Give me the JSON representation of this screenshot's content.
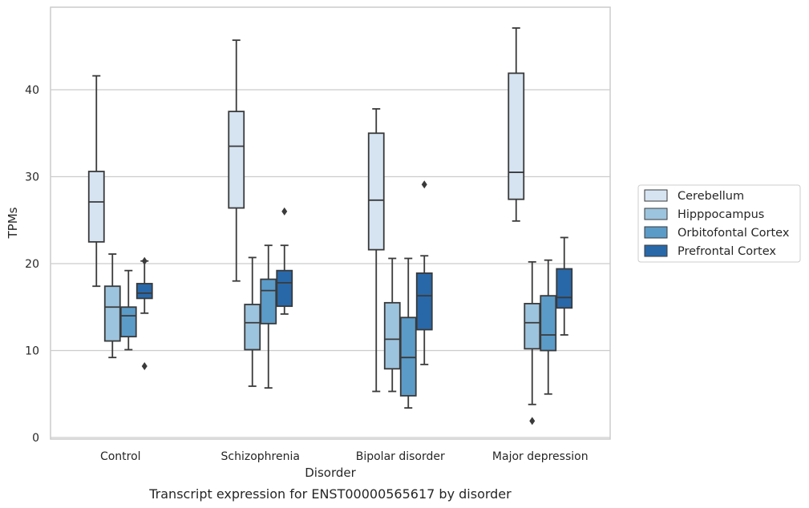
{
  "chart_data": {
    "type": "box",
    "title": "",
    "caption": "Transcript expression for ENST00000565617 by disorder",
    "xlabel": "Disorder",
    "ylabel": "TPMs",
    "ylim": [
      0,
      48
    ],
    "yticks": [
      0,
      10,
      20,
      30,
      40
    ],
    "grid": "horizontal",
    "legend_position": "right",
    "categories": [
      "Control",
      "Schizophrenia",
      "Bipolar disorder",
      "Major depression"
    ],
    "series": [
      {
        "name": "Cerebellum",
        "color": "#d6e4f2",
        "boxes": [
          {
            "min": 17.4,
            "q1": 22.5,
            "median": 27.1,
            "q3": 30.6,
            "max": 41.6,
            "outliers": []
          },
          {
            "min": 18.0,
            "q1": 26.4,
            "median": 33.5,
            "q3": 37.5,
            "max": 45.7,
            "outliers": []
          },
          {
            "min": 5.3,
            "q1": 21.6,
            "median": 27.3,
            "q3": 35.0,
            "max": 37.8,
            "outliers": []
          },
          {
            "min": 24.9,
            "q1": 27.4,
            "median": 30.5,
            "q3": 41.9,
            "max": 47.1,
            "outliers": []
          }
        ]
      },
      {
        "name": "Hipppocampus",
        "color": "#9dc4de",
        "boxes": [
          {
            "min": 9.2,
            "q1": 11.1,
            "median": 15.0,
            "q3": 17.4,
            "max": 21.1,
            "outliers": []
          },
          {
            "min": 5.9,
            "q1": 10.1,
            "median": 13.2,
            "q3": 15.3,
            "max": 20.7,
            "outliers": []
          },
          {
            "min": 5.3,
            "q1": 7.9,
            "median": 11.3,
            "q3": 15.5,
            "max": 20.6,
            "outliers": []
          },
          {
            "min": 3.8,
            "q1": 10.2,
            "median": 13.2,
            "q3": 15.4,
            "max": 20.2,
            "outliers": [
              1.9
            ]
          }
        ]
      },
      {
        "name": "Orbitofontal Cortex",
        "color": "#5b9bc8",
        "boxes": [
          {
            "min": 10.1,
            "q1": 11.6,
            "median": 14.0,
            "q3": 15.0,
            "max": 19.2,
            "outliers": []
          },
          {
            "min": 5.7,
            "q1": 13.1,
            "median": 16.9,
            "q3": 18.2,
            "max": 22.1,
            "outliers": []
          },
          {
            "min": 3.4,
            "q1": 4.8,
            "median": 9.2,
            "q3": 13.8,
            "max": 20.6,
            "outliers": []
          },
          {
            "min": 5.0,
            "q1": 10.0,
            "median": 11.8,
            "q3": 16.3,
            "max": 20.4,
            "outliers": []
          }
        ]
      },
      {
        "name": "Prefrontal Cortex",
        "color": "#2868a9",
        "boxes": [
          {
            "min": 14.3,
            "q1": 16.0,
            "median": 16.6,
            "q3": 17.7,
            "max": 20.3,
            "outliers": [
              20.3,
              8.2
            ]
          },
          {
            "min": 14.2,
            "q1": 15.1,
            "median": 17.8,
            "q3": 19.2,
            "max": 22.1,
            "outliers": [
              26.0
            ]
          },
          {
            "min": 8.4,
            "q1": 12.4,
            "median": 16.3,
            "q3": 18.9,
            "max": 20.9,
            "outliers": [
              29.1
            ]
          },
          {
            "min": 11.8,
            "q1": 14.9,
            "median": 16.1,
            "q3": 19.4,
            "max": 23.0,
            "outliers": []
          }
        ]
      }
    ]
  }
}
